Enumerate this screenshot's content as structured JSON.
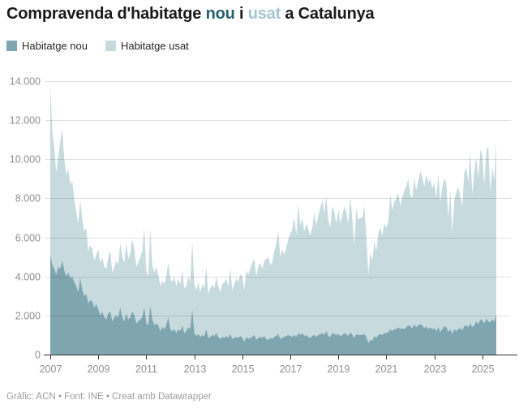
{
  "header": {
    "title_parts": [
      {
        "text": "Compravenda d'habitatge ",
        "color": "#1a1a1a"
      },
      {
        "text": "nou",
        "color": "#26606f"
      },
      {
        "text": " i ",
        "color": "#1a1a1a"
      },
      {
        "text": "usat",
        "color": "#a6c7d0"
      },
      {
        "text": " a Catalunya",
        "color": "#1a1a1a"
      }
    ]
  },
  "legend": {
    "items": [
      {
        "label": "Habitatge nou",
        "color": "#7fa5b1"
      },
      {
        "label": "Habitatge usat",
        "color": "#c7dade"
      }
    ]
  },
  "footer": {
    "text": "Gràfic: ACN • Font: INE • Creat amb Datawrapper"
  },
  "chart_data": {
    "type": "area",
    "stacked": true,
    "title": "Compravenda d'habitatge nou i usat a Catalunya",
    "xlabel": "",
    "ylabel": "",
    "x_start": {
      "year": 2007,
      "month": 1
    },
    "x_end": {
      "year": 2025,
      "month": 8
    },
    "x_frequency": "monthly",
    "x_tick_years": [
      2007,
      2009,
      2011,
      2013,
      2015,
      2017,
      2019,
      2021,
      2023,
      2025
    ],
    "y_max": 14000,
    "y_ticks": [
      0,
      2000,
      4000,
      6000,
      8000,
      10000,
      12000,
      14000
    ],
    "y_tick_labels": [
      "0",
      "2.000",
      "4.000",
      "6.000",
      "8.000",
      "10.000",
      "12.000",
      "14.000"
    ],
    "grid": "horizontal",
    "legend_position": "top-left",
    "colors": {
      "baseline": "#333333",
      "gridline": "rgba(0,0,0,0.12)",
      "axis_text": "#8f8f8f"
    },
    "series": [
      {
        "name": "Habitatge nou",
        "color": "#7fa5b1",
        "values": [
          5100,
          4600,
          4400,
          4100,
          4500,
          4400,
          4800,
          4300,
          4000,
          4200,
          3900,
          4000,
          3700,
          3500,
          3200,
          3900,
          3300,
          3000,
          3100,
          2600,
          2800,
          2700,
          2400,
          2600,
          2300,
          2000,
          2200,
          1900,
          1800,
          2100,
          2200,
          1700,
          1900,
          2000,
          1900,
          2400,
          1900,
          1700,
          2100,
          1800,
          1900,
          2200,
          2000,
          1600,
          1700,
          1800,
          1900,
          2400,
          1600,
          1500,
          2500,
          1800,
          1500,
          1600,
          1500,
          1200,
          1400,
          1300,
          1500,
          1900,
          1300,
          1200,
          1300,
          1100,
          1300,
          1200,
          1500,
          1100,
          1200,
          1400,
          1300,
          2300,
          1100,
          950,
          1050,
          900,
          1000,
          950,
          1300,
          850,
          900,
          1000,
          950,
          1100,
          900,
          800,
          900,
          850,
          950,
          850,
          1050,
          800,
          850,
          900,
          850,
          950,
          850,
          650,
          900,
          800,
          850,
          900,
          1000,
          750,
          850,
          900,
          850,
          950,
          800,
          750,
          850,
          800,
          900,
          950,
          1050,
          800,
          850,
          900,
          950,
          1000,
          950,
          900,
          1000,
          900,
          1100,
          1000,
          1100,
          950,
          1000,
          900,
          850,
          950,
          1000,
          900,
          1000,
          1050,
          1100,
          1000,
          1200,
          950,
          900,
          1100,
          1050,
          1000,
          1050,
          950,
          1000,
          1100,
          1050,
          950,
          1150,
          1000,
          850,
          1050,
          1000,
          1000,
          1000,
          1050,
          900,
          600,
          750,
          700,
          950,
          850,
          1000,
          1050,
          1000,
          1100,
          1100,
          1150,
          1300,
          1200,
          1300,
          1300,
          1400,
          1300,
          1350,
          1300,
          1400,
          1500,
          1450,
          1350,
          1550,
          1400,
          1500,
          1550,
          1500,
          1350,
          1450,
          1300,
          1400,
          1300,
          1350,
          1200,
          1400,
          1150,
          1300,
          1450,
          1400,
          1150,
          1300,
          1050,
          1300,
          1200,
          1300,
          1350,
          1250,
          1450,
          1500,
          1400,
          1600,
          1400,
          1500,
          1700,
          1550,
          1800,
          1750,
          1600,
          1850,
          1700,
          1650,
          1800,
          1700,
          2000
        ]
      },
      {
        "name": "Habitatge usat",
        "color": "#c7dade",
        "values": [
          8700,
          6800,
          6200,
          5200,
          5700,
          6500,
          6800,
          5700,
          5200,
          5300,
          4800,
          4900,
          4200,
          3800,
          3500,
          4000,
          3600,
          3300,
          3400,
          2700,
          2800,
          2700,
          2400,
          2500,
          3100,
          2700,
          2800,
          2600,
          2600,
          2900,
          3100,
          2500,
          2600,
          2800,
          2700,
          3300,
          3100,
          3000,
          3600,
          3100,
          3300,
          3700,
          3400,
          2900,
          3000,
          3200,
          3400,
          4100,
          2700,
          2500,
          3900,
          2800,
          2700,
          2900,
          2600,
          2300,
          2400,
          2300,
          2500,
          2800,
          2600,
          2500,
          2700,
          2400,
          2600,
          2400,
          2800,
          2300,
          2300,
          2600,
          2400,
          3500,
          2500,
          2350,
          2650,
          2300,
          2600,
          2450,
          3200,
          2250,
          2500,
          2600,
          2450,
          2900,
          2600,
          2400,
          2700,
          2850,
          2950,
          2650,
          3350,
          2500,
          2750,
          3000,
          2850,
          3150,
          3150,
          2650,
          3400,
          3300,
          3550,
          3800,
          3900,
          3250,
          3650,
          3800,
          3550,
          3850,
          4100,
          4250,
          3750,
          3900,
          4400,
          4750,
          5250,
          4200,
          4550,
          4200,
          4550,
          4900,
          5250,
          5500,
          6000,
          5200,
          6600,
          5600,
          5900,
          5350,
          5700,
          5500,
          5250,
          5550,
          6300,
          5700,
          6100,
          6450,
          6800,
          6200,
          6900,
          5950,
          5600,
          6500,
          6250,
          5700,
          6350,
          5750,
          6100,
          6500,
          6250,
          5750,
          6950,
          6000,
          4750,
          6450,
          5900,
          6000,
          6000,
          6550,
          5200,
          3500,
          4450,
          4100,
          4850,
          4450,
          5200,
          5450,
          5100,
          5600,
          5400,
          5650,
          6900,
          6200,
          6500,
          6700,
          6900,
          6300,
          6750,
          7100,
          7200,
          7500,
          6750,
          6650,
          7450,
          7000,
          7400,
          7850,
          7600,
          7250,
          7750,
          7500,
          7600,
          7200,
          7450,
          6800,
          7800,
          6650,
          7300,
          7550,
          7400,
          5850,
          7100,
          5150,
          6600,
          7100,
          7300,
          6750,
          6350,
          7850,
          8100,
          7400,
          8800,
          6800,
          7900,
          8400,
          7450,
          8700,
          8450,
          7100,
          8550,
          9000,
          6650,
          7800,
          7200,
          8900
        ]
      }
    ]
  }
}
